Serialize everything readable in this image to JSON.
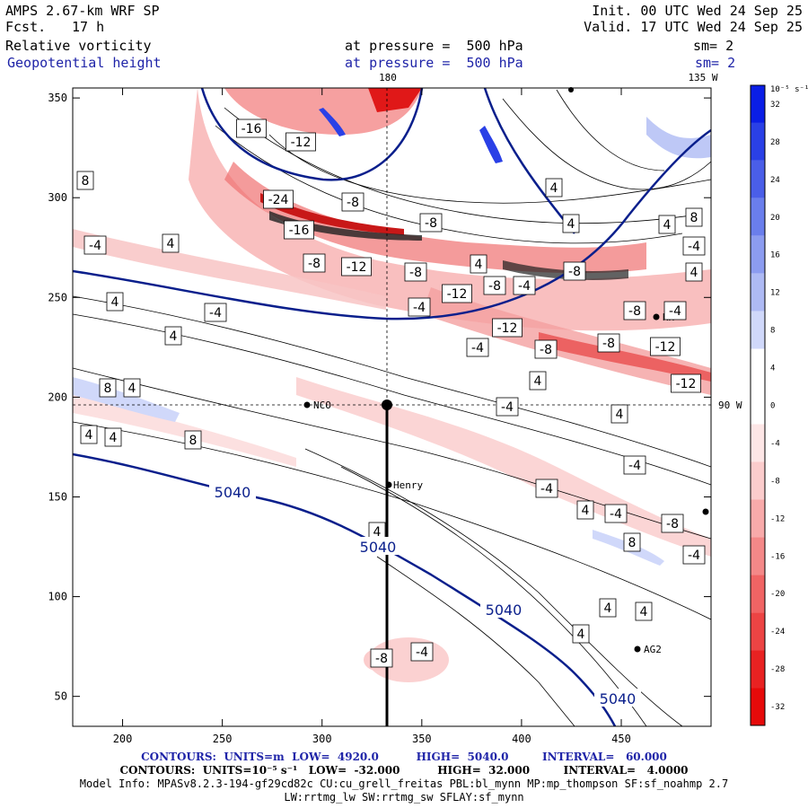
{
  "header": {
    "model": "AMPS 2.67-km WRF SP",
    "fcst_label": "Fcst.",
    "fcst_value": "17 h",
    "init": "Init. 00 UTC Wed 24 Sep 25",
    "valid": "Valid. 17 UTC Wed 24 Sep 25",
    "field1_name": "Relative vorticity",
    "field1_level": "at pressure =  500 hPa",
    "field1_sm": "sm= 2",
    "field2_name": "Geopotential height",
    "field2_level": "at pressure =  500 hPa",
    "field2_sm": "sm= 2"
  },
  "map_labels": {
    "lon_180": "180",
    "lon_135w": "135 W",
    "lon_90w": "90 W",
    "stations": [
      "NCO",
      "Henry",
      "AG2",
      "HH"
    ]
  },
  "footer": {
    "line1": "CONTOURS:  UNITS=m  LOW=  4920.0          HIGH=  5040.0         INTERVAL=   60.000",
    "line2": "CONTOURS:  UNITS=10⁻⁵ s⁻¹   LOW=  -32.000          HIGH=  32.000         INTERVAL=   4.0000",
    "line3": "Model Info: MPASv8.2.3-194-gf29cd82c CU:cu_grell_freitas PBL:bl_mynn MP:mp_thompson SF:sf_noahmp 2.7",
    "line4": "LW:rrtmg_lw SW:rrtmg_sw SFLAY:sf_mynn"
  },
  "colors": {
    "height_contour": "#0a1f8c",
    "positive_vort": "#1030e0",
    "negative_vort": "#e83030"
  },
  "chart_data": {
    "type": "heatmap",
    "x_ticks": [
      200,
      250,
      300,
      350,
      400,
      450
    ],
    "y_ticks": [
      50,
      100,
      150,
      200,
      250,
      300,
      350
    ],
    "xlim": [
      175,
      495
    ],
    "ylim": [
      35,
      355
    ],
    "colorbar": {
      "unit_label": "10⁻⁵ s⁻¹",
      "levels": [
        32,
        28,
        24,
        20,
        16,
        12,
        8,
        4,
        0,
        -4,
        -8,
        -12,
        -16,
        -20,
        -24,
        -28,
        -32
      ],
      "colors": [
        "#0a1ee6",
        "#2a40e6",
        "#4a5ee8",
        "#6a7eec",
        "#8c9cf0",
        "#aebaf4",
        "#d0d8fa",
        "#ffffff",
        "#ffffff",
        "#fde6e6",
        "#fbcccc",
        "#f8aaaa",
        "#f48888",
        "#f06464",
        "#ec4444",
        "#e82222",
        "#e60a0a"
      ]
    },
    "height_contour_labels": [
      "5040",
      "5040",
      "5040",
      "5040"
    ],
    "vorticity_labels": [
      "-16",
      "-12",
      "-24",
      "-8",
      "-16",
      "-8",
      "-8",
      "-12",
      "-8",
      "-12",
      "-8",
      "-4",
      "-4",
      "-8",
      "-4",
      "-12",
      "-8",
      "-8",
      "-12",
      "-12",
      "4",
      "8",
      "-4",
      "4",
      "8",
      "4",
      "-4",
      "4",
      "8",
      "4",
      "4",
      "-4",
      "-4",
      "-8",
      "-4",
      "4",
      "-4",
      "4",
      "-4",
      "-8",
      "8",
      "-4",
      "-4",
      "4",
      "4",
      "4",
      "4",
      "4",
      "4",
      "4",
      "-4",
      "4",
      "8",
      "-8",
      "4",
      "4"
    ]
  }
}
